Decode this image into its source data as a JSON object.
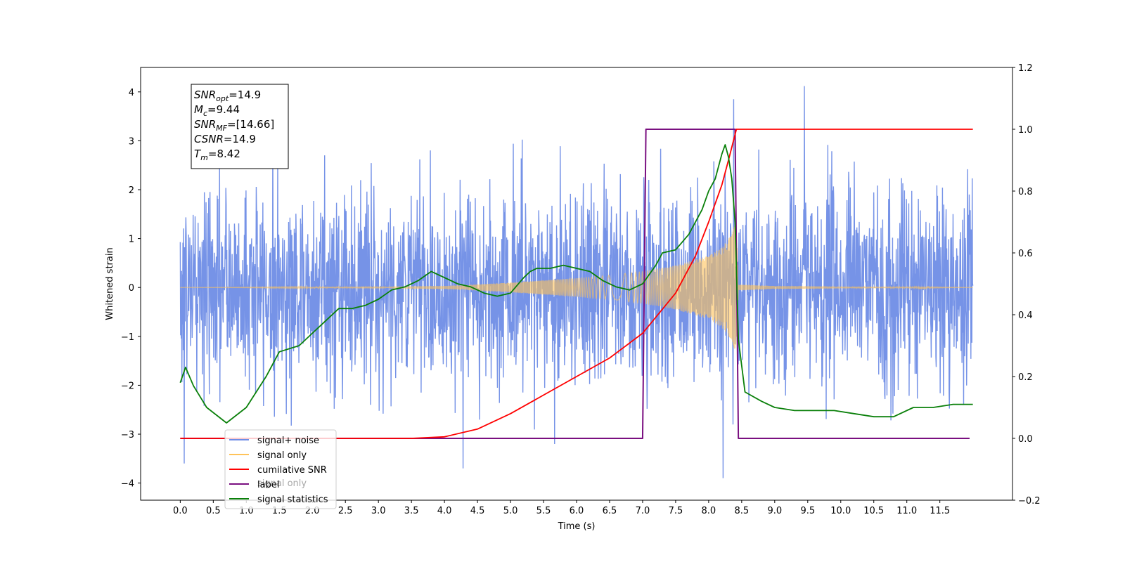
{
  "chart_data": {
    "type": "line",
    "xlabel": "Time (s)",
    "ylabel": "Whitened strain",
    "xlim": [
      -0.6,
      12.6
    ],
    "ylim": [
      -4.35,
      4.5
    ],
    "y2lim": [
      -0.2,
      1.2
    ],
    "x_ticks": [
      "0.0",
      "0.5",
      "1.0",
      "1.5",
      "2.0",
      "2.5",
      "3.0",
      "3.5",
      "4.0",
      "4.5",
      "5.0",
      "5.5",
      "6.0",
      "6.5",
      "7.0",
      "7.5",
      "8.0",
      "8.5",
      "9.0",
      "9.5",
      "10.0",
      "10.5",
      "11.0",
      "11.5"
    ],
    "y_ticks": [
      "4",
      "3",
      "2",
      "1",
      "0",
      "−1",
      "−2",
      "−3",
      "−4"
    ],
    "y2_ticks": [
      "1.2",
      "1.0",
      "0.8",
      "0.6",
      "0.4",
      "0.2",
      "0.0",
      "−0.2"
    ],
    "annotation": [
      {
        "name": "SNR",
        "sub": "opt",
        "value": "=14.9"
      },
      {
        "name": "M",
        "sub": "c",
        "value": "=9.44"
      },
      {
        "name": "SNR",
        "sub": "MF",
        "value": "=[14.66]"
      },
      {
        "name": "CSNR",
        "sub": "",
        "value": "=14.9"
      },
      {
        "name": "T",
        "sub": "m",
        "value": "=8.42"
      }
    ],
    "legend": {
      "placement": "lower-left",
      "entries": [
        {
          "label": "signal+ noise",
          "color": "#6f8de6"
        },
        {
          "label": "signal only",
          "color": "#ffc35a"
        },
        {
          "label": "cumilative SNR",
          "color": "#ff0000"
        },
        {
          "label": "label",
          "color": "#7a0f80"
        },
        {
          "label": "signal statistics",
          "color": "#0a800a"
        }
      ],
      "ghost_label": "signal only"
    },
    "series": [
      {
        "name": "signal+ noise",
        "axis": "left",
        "color": "#6f8de6",
        "x_range": [
          0.0,
          12.0
        ],
        "std": 1.0,
        "points": 2400,
        "peaks": [
          [
            8.38,
            3.85
          ],
          [
            9.45,
            4.12
          ],
          [
            8.22,
            -3.9
          ],
          [
            0.06,
            -3.6
          ],
          [
            4.28,
            -3.7
          ]
        ]
      },
      {
        "name": "signal only",
        "axis": "left",
        "color": "#ffc35a",
        "envelope": [
          [
            0.0,
            0.0
          ],
          [
            2.0,
            0.01
          ],
          [
            4.0,
            0.03
          ],
          [
            5.0,
            0.1
          ],
          [
            6.0,
            0.19
          ],
          [
            6.5,
            0.25
          ],
          [
            7.0,
            0.33
          ],
          [
            7.5,
            0.45
          ],
          [
            8.0,
            0.65
          ],
          [
            8.2,
            0.82
          ],
          [
            8.35,
            1.08
          ],
          [
            8.42,
            1.4
          ],
          [
            8.45,
            0.06
          ],
          [
            9.0,
            0.03
          ],
          [
            12.0,
            0.0
          ]
        ]
      },
      {
        "name": "cumilative SNR",
        "axis": "right",
        "color": "#ff0000",
        "x": [
          0.0,
          3.5,
          4.0,
          4.5,
          5.0,
          5.5,
          6.0,
          6.5,
          7.0,
          7.5,
          7.8,
          8.0,
          8.2,
          8.3,
          8.42,
          8.45,
          12.0
        ],
        "y": [
          0.0,
          0.0,
          0.005,
          0.03,
          0.08,
          0.14,
          0.2,
          0.26,
          0.34,
          0.47,
          0.59,
          0.7,
          0.82,
          0.9,
          1.0,
          1.0,
          1.0
        ]
      },
      {
        "name": "label",
        "axis": "right",
        "color": "#7a0f80",
        "x": [
          0.0,
          7.0,
          7.05,
          8.4,
          8.45,
          11.95
        ],
        "y": [
          0.0,
          0.0,
          1.0,
          1.0,
          0.0,
          0.0
        ]
      },
      {
        "name": "signal statistics",
        "axis": "right",
        "color": "#0a800a",
        "x": [
          0.0,
          0.08,
          0.2,
          0.4,
          0.7,
          1.0,
          1.3,
          1.5,
          1.8,
          2.0,
          2.2,
          2.4,
          2.6,
          2.8,
          3.0,
          3.2,
          3.4,
          3.6,
          3.8,
          3.9,
          4.0,
          4.2,
          4.4,
          4.6,
          4.8,
          5.0,
          5.2,
          5.3,
          5.4,
          5.6,
          5.8,
          6.0,
          6.2,
          6.4,
          6.6,
          6.8,
          7.0,
          7.2,
          7.3,
          7.5,
          7.7,
          7.9,
          8.0,
          8.1,
          8.2,
          8.25,
          8.3,
          8.35,
          8.4,
          8.45,
          8.55,
          8.8,
          9.0,
          9.3,
          9.6,
          9.9,
          10.2,
          10.5,
          10.8,
          11.1,
          11.4,
          11.7,
          12.0
        ],
        "y": [
          0.18,
          0.23,
          0.17,
          0.1,
          0.05,
          0.1,
          0.2,
          0.28,
          0.3,
          0.34,
          0.38,
          0.42,
          0.42,
          0.43,
          0.45,
          0.48,
          0.49,
          0.51,
          0.54,
          0.53,
          0.52,
          0.5,
          0.49,
          0.47,
          0.46,
          0.47,
          0.52,
          0.54,
          0.55,
          0.55,
          0.56,
          0.55,
          0.54,
          0.51,
          0.49,
          0.48,
          0.5,
          0.56,
          0.6,
          0.61,
          0.66,
          0.74,
          0.8,
          0.84,
          0.92,
          0.95,
          0.91,
          0.84,
          0.7,
          0.32,
          0.15,
          0.12,
          0.1,
          0.09,
          0.09,
          0.09,
          0.08,
          0.07,
          0.07,
          0.1,
          0.1,
          0.11,
          0.11
        ]
      }
    ]
  }
}
